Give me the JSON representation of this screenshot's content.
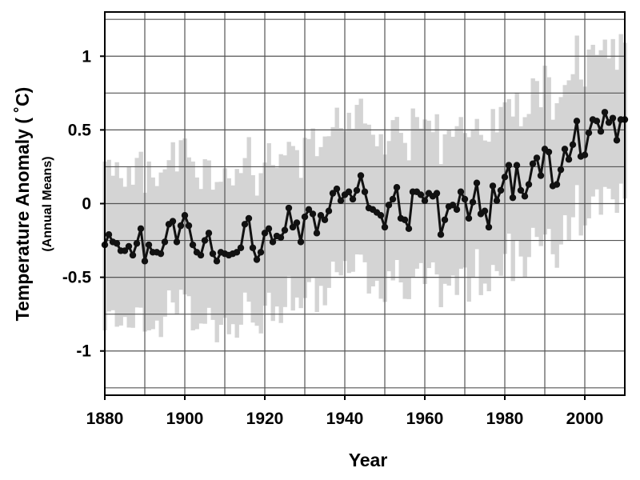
{
  "chart_data": {
    "type": "line",
    "title": "",
    "xlabel": "Year",
    "ylabel": "Temperature Anomaly ( ˚C)",
    "ylabel_sub": "(Annual Means)",
    "xlim": [
      1880,
      2010
    ],
    "ylim": [
      -1.3,
      1.3
    ],
    "grid": true,
    "x_ticks": [
      1880,
      1900,
      1920,
      1940,
      1960,
      1980,
      2000
    ],
    "x_tick_labels": [
      "1880",
      "1900",
      "1920",
      "1940",
      "1960",
      "1980",
      "2000"
    ],
    "y_ticks": [
      1,
      0.5,
      0,
      -0.5,
      -1
    ],
    "y_tick_labels": [
      "1",
      "0.5",
      "0",
      "-0.5",
      "-1"
    ],
    "colors": {
      "line": "#111111",
      "band": "#d4d4d4",
      "grid": "#555555"
    },
    "x": [
      1880,
      1881,
      1882,
      1883,
      1884,
      1885,
      1886,
      1887,
      1888,
      1889,
      1890,
      1891,
      1892,
      1893,
      1894,
      1895,
      1896,
      1897,
      1898,
      1899,
      1900,
      1901,
      1902,
      1903,
      1904,
      1905,
      1906,
      1907,
      1908,
      1909,
      1910,
      1911,
      1912,
      1913,
      1914,
      1915,
      1916,
      1917,
      1918,
      1919,
      1920,
      1921,
      1922,
      1923,
      1924,
      1925,
      1926,
      1927,
      1928,
      1929,
      1930,
      1931,
      1932,
      1933,
      1934,
      1935,
      1936,
      1937,
      1938,
      1939,
      1940,
      1941,
      1942,
      1943,
      1944,
      1945,
      1946,
      1947,
      1948,
      1949,
      1950,
      1951,
      1952,
      1953,
      1954,
      1955,
      1956,
      1957,
      1958,
      1959,
      1960,
      1961,
      1962,
      1963,
      1964,
      1965,
      1966,
      1967,
      1968,
      1969,
      1970,
      1971,
      1972,
      1973,
      1974,
      1975,
      1976,
      1977,
      1978,
      1979,
      1980,
      1981,
      1982,
      1983,
      1984,
      1985,
      1986,
      1987,
      1988,
      1989,
      1990,
      1991,
      1992,
      1993,
      1994,
      1995,
      1996,
      1997,
      1998,
      1999,
      2000,
      2001,
      2002,
      2003,
      2004,
      2005,
      2006,
      2007,
      2008,
      2009,
      2010
    ],
    "series": [
      {
        "values": [
          -0.28,
          -0.21,
          -0.26,
          -0.27,
          -0.32,
          -0.32,
          -0.29,
          -0.35,
          -0.27,
          -0.17,
          -0.39,
          -0.28,
          -0.33,
          -0.33,
          -0.34,
          -0.26,
          -0.14,
          -0.12,
          -0.26,
          -0.15,
          -0.08,
          -0.15,
          -0.28,
          -0.33,
          -0.35,
          -0.25,
          -0.2,
          -0.34,
          -0.39,
          -0.33,
          -0.34,
          -0.35,
          -0.34,
          -0.33,
          -0.3,
          -0.14,
          -0.1,
          -0.3,
          -0.38,
          -0.33,
          -0.2,
          -0.17,
          -0.26,
          -0.22,
          -0.23,
          -0.18,
          -0.03,
          -0.16,
          -0.13,
          -0.26,
          -0.09,
          -0.04,
          -0.07,
          -0.2,
          -0.08,
          -0.11,
          -0.05,
          0.07,
          0.1,
          0.02,
          0.06,
          0.08,
          0.03,
          0.09,
          0.19,
          0.08,
          -0.03,
          -0.04,
          -0.06,
          -0.08,
          -0.16,
          -0.01,
          0.03,
          0.11,
          -0.1,
          -0.11,
          -0.17,
          0.08,
          0.08,
          0.06,
          0.02,
          0.07,
          0.05,
          0.07,
          -0.21,
          -0.11,
          -0.02,
          -0.01,
          -0.04,
          0.08,
          0.03,
          -0.1,
          0.01,
          0.14,
          -0.07,
          -0.05,
          -0.16,
          0.12,
          0.02,
          0.09,
          0.18,
          0.26,
          0.04,
          0.26,
          0.09,
          0.05,
          0.13,
          0.27,
          0.31,
          0.19,
          0.37,
          0.35,
          0.12,
          0.13,
          0.23,
          0.37,
          0.3,
          0.4,
          0.56,
          0.32,
          0.33,
          0.48,
          0.57,
          0.56,
          0.49,
          0.62,
          0.55,
          0.58,
          0.43,
          0.57,
          0.57
        ]
      }
    ],
    "band_half_width": 0.5
  }
}
